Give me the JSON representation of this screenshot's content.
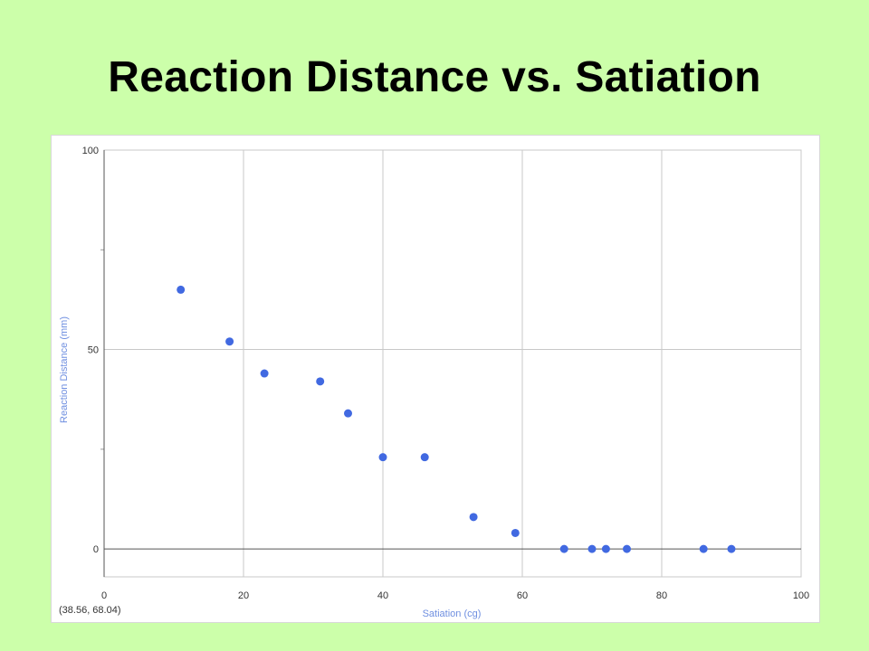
{
  "slide": {
    "title": "Reaction Distance vs. Satiation"
  },
  "chart_data": {
    "type": "scatter",
    "title": "",
    "xlabel": "Satiation (cg)",
    "ylabel": "Reaction Distance (mm)",
    "xlim": [
      0,
      100
    ],
    "ylim": [
      -7,
      100
    ],
    "x_ticks": [
      0,
      20,
      40,
      60,
      80,
      100
    ],
    "y_ticks": [
      0,
      50,
      100
    ],
    "grid": true,
    "series": [
      {
        "color": "#4169e1",
        "points": [
          {
            "x": 11,
            "y": 65
          },
          {
            "x": 18,
            "y": 52
          },
          {
            "x": 23,
            "y": 44
          },
          {
            "x": 31,
            "y": 42
          },
          {
            "x": 35,
            "y": 34
          },
          {
            "x": 40,
            "y": 23
          },
          {
            "x": 46,
            "y": 23
          },
          {
            "x": 53,
            "y": 8
          },
          {
            "x": 59,
            "y": 4
          },
          {
            "x": 66,
            "y": 0
          },
          {
            "x": 70,
            "y": 0
          },
          {
            "x": 72,
            "y": 0
          },
          {
            "x": 75,
            "y": 0
          },
          {
            "x": 86,
            "y": 0
          },
          {
            "x": 90,
            "y": 0
          }
        ]
      }
    ],
    "axis_label_color": "#6f8fe0",
    "cursor_readout": "(38.56, 68.04)"
  }
}
